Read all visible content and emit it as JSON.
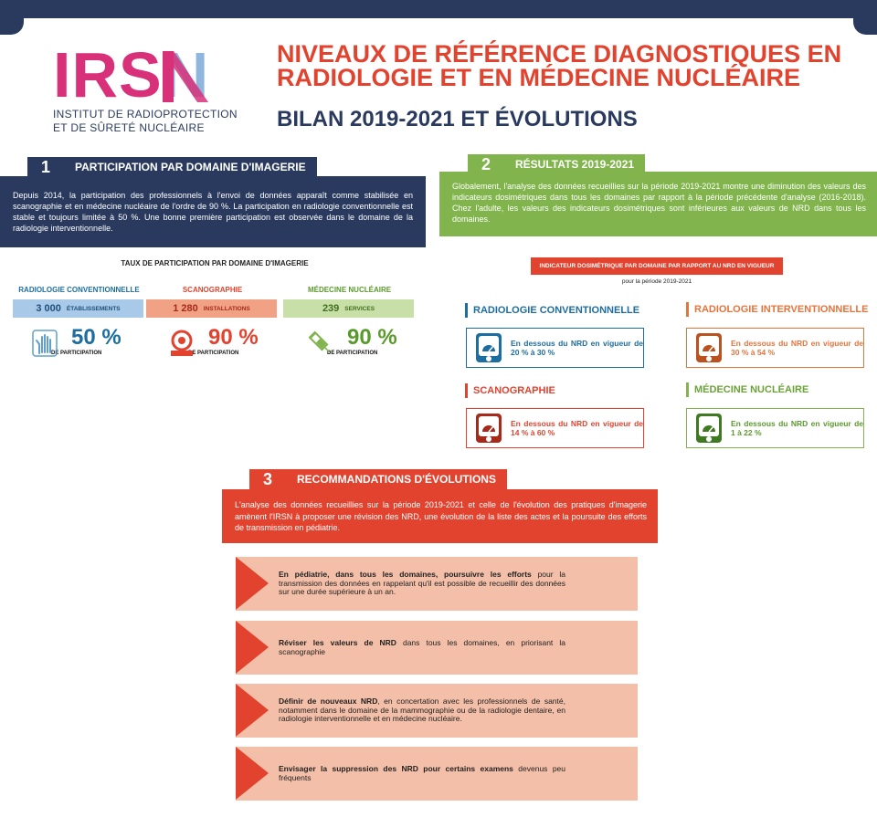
{
  "colors": {
    "navy": "#2a3a5e",
    "green": "#81b44c",
    "red": "#e2432f",
    "orange": "#e4743c",
    "blue": "#1d6ea0",
    "pink": "#d8317a",
    "light_blue": "#8fb6dc",
    "salmon": "#f4bfa8"
  },
  "header": {
    "logo_text": "IRSN",
    "logo_sub_line1": "INSTITUT DE RADIOPROTECTION",
    "logo_sub_line2": "ET DE SÛRETÉ NUCLÉAIRE",
    "title_line1": "NIVEAUX DE RÉFÉRENCE DIAGNOSTIQUES EN",
    "title_line2": "RADIOLOGIE ET EN MÉDECINE NUCLÉAIRE",
    "subtitle": "BILAN 2019-2021 ET ÉVOLUTIONS"
  },
  "section1": {
    "number": "1",
    "title": "PARTICIPATION PAR DOMAINE D'IMAGERIE",
    "text": "Depuis 2014, la participation des professionnels à l'envoi de données apparaît comme stabilisée en scanographie et en médecine nucléaire de l'ordre de 90 %. La participation en radiologie conventionnelle est stable et toujours limitée à 50 %. Une bonne première participation est observée dans le domaine de la radiologie interventionnelle.",
    "chart_title": "TAUX DE PARTICIPATION PAR DOMAINE D'IMAGERIE",
    "domains": [
      {
        "name": "RADIOLOGIE CONVENTIONNELLE",
        "count": "3 000",
        "unit": "ÉTABLISSEMENTS",
        "percent": "50 %",
        "percent_label": "DE PARTICIPATION",
        "icon": "hand-xray-icon"
      },
      {
        "name": "SCANOGRAPHIE",
        "count": "1 280",
        "unit": "INSTALLATIONS",
        "percent": "90 %",
        "percent_label": "DE PARTICIPATION",
        "icon": "ct-scanner-icon"
      },
      {
        "name": "MÉDECINE NUCLÉAIRE",
        "count": "239",
        "unit": "SERVICES",
        "percent": "90 %",
        "percent_label": "DE PARTICIPATION",
        "icon": "syringe-icon"
      }
    ]
  },
  "section2": {
    "number": "2",
    "title": "RÉSULTATS 2019-2021",
    "text": "Globalement, l'analyse des données recueillies sur la période 2019-2021 montre une diminution des valeurs des indicateurs dosimétriques dans tous les domaines par rapport à la période précédente d'analyse (2016-2018). Chez l'adulte, les valeurs des indicateurs dosimétriques sont inférieures aux valeurs de NRD dans tous les domaines.",
    "indicator_badge": "INDICATEUR DOSIMÉTRIQUE PAR DOMAINE PAR RAPPORT AU NRD EN VIGUEUR",
    "indicator_period": "pour la période 2019-2021",
    "results": [
      {
        "name": "RADIOLOGIE CONVENTIONNELLE",
        "text": "En dessous du NRD en vigueur de 20 % à 30 %",
        "icon": "dose-gauge-icon"
      },
      {
        "name": "RADIOLOGIE INTERVENTIONNELLE",
        "text": "En dessous du NRD en vigueur de 30 % à 54 %",
        "icon": "dose-gauge-icon"
      },
      {
        "name": "SCANOGRAPHIE",
        "text": "En dessous du NRD en vigueur de 14 % à 60 %",
        "icon": "dose-gauge-icon"
      },
      {
        "name": "MÉDECINE NUCLÉAIRE",
        "text": "En dessous du NRD en vigueur de 1 à 22 %",
        "icon": "dose-gauge-icon"
      }
    ]
  },
  "section3": {
    "number": "3",
    "title": "RECOMMANDATIONS D'ÉVOLUTIONS",
    "text": "L'analyse des données recueillies sur la période 2019-2021 et celle de l'évolution des pratiques d'imagerie amènent l'IRSN à proposer une révision des NRD, une évolution de la liste des actes et la poursuite des efforts de transmission en pédiatrie.",
    "recommendations": [
      {
        "bold": "En pédiatrie, dans tous les domaines, poursuivre les efforts",
        "rest": " pour la transmission des données en rappelant qu'il est possible de recueillir des données sur une durée supérieure à un an."
      },
      {
        "bold": "Réviser les valeurs de NRD",
        "rest": " dans tous les domaines, en priorisant la scanographie"
      },
      {
        "bold": "Définir de nouveaux NRD",
        "rest": ", en concertation avec les professionnels de santé, notamment dans le domaine de la mammographie ou de la radiologie dentaire, en radiologie interventionnelle et en médecine nucléaire."
      },
      {
        "bold": "Envisager la suppression des NRD pour certains examens",
        "rest": " devenus peu fréquents"
      }
    ]
  }
}
